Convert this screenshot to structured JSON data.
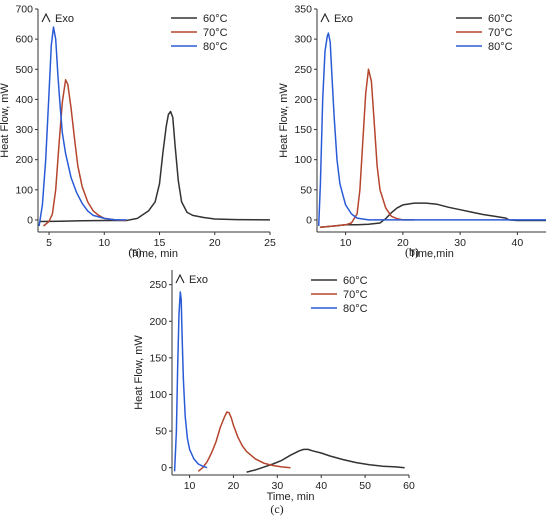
{
  "chart_data": [
    {
      "panel": "(a)",
      "type": "line",
      "exo_label": "Exo",
      "xlabel": "Time, min",
      "ylabel": "Heat Flow, mW",
      "xlim": [
        4,
        25
      ],
      "ylim": [
        -40,
        700
      ],
      "xticks": [
        5,
        10,
        15,
        20,
        25
      ],
      "yticks": [
        0,
        100,
        200,
        300,
        400,
        500,
        600,
        700
      ],
      "legend_position": "top-right",
      "series": [
        {
          "name": "60°C",
          "color": "#333333",
          "x": [
            4.2,
            6,
            8,
            10,
            12,
            13,
            14,
            14.6,
            15.0,
            15.3,
            15.6,
            15.8,
            16.0,
            16.2,
            16.4,
            16.7,
            17.0,
            17.5,
            18,
            19,
            20,
            22,
            25
          ],
          "y": [
            -5,
            -4,
            -3,
            -2,
            -2,
            5,
            30,
            60,
            120,
            220,
            310,
            350,
            360,
            340,
            250,
            130,
            60,
            25,
            15,
            8,
            3,
            1,
            0
          ]
        },
        {
          "name": "70°C",
          "color": "#b5452d",
          "x": [
            4.5,
            5.0,
            5.3,
            5.6,
            5.9,
            6.2,
            6.5,
            6.7,
            7.0,
            7.3,
            7.6,
            8.0,
            8.5,
            9.0,
            9.5,
            10,
            11,
            12
          ],
          "y": [
            -20,
            -5,
            20,
            100,
            250,
            390,
            465,
            450,
            370,
            270,
            180,
            110,
            60,
            30,
            15,
            5,
            0,
            -2
          ]
        },
        {
          "name": "80°C",
          "color": "#2a5bd7",
          "x": [
            4.1,
            4.4,
            4.7,
            5.0,
            5.2,
            5.4,
            5.6,
            5.8,
            6.0,
            6.2,
            6.5,
            7.0,
            7.5,
            8.0,
            8.5,
            9.0,
            10,
            11,
            12
          ],
          "y": [
            -20,
            50,
            200,
            420,
            580,
            640,
            600,
            480,
            380,
            290,
            220,
            140,
            90,
            55,
            30,
            15,
            5,
            0,
            0
          ]
        }
      ]
    },
    {
      "panel": "(b)",
      "type": "line",
      "exo_label": "Exo",
      "xlabel": "Time,min",
      "ylabel": "Heat Flow, mW",
      "xlim": [
        5,
        45
      ],
      "ylim": [
        -20,
        350
      ],
      "xticks": [
        10,
        20,
        30,
        40
      ],
      "yticks": [
        0,
        50,
        100,
        150,
        200,
        250,
        300,
        350
      ],
      "legend_position": "top-right",
      "series": [
        {
          "name": "60°C",
          "color": "#333333",
          "x": [
            5.5,
            8,
            10,
            12,
            14,
            16,
            17,
            18,
            19,
            20,
            22,
            24,
            26,
            28,
            30,
            32,
            34,
            36,
            38,
            38.5,
            40,
            45
          ],
          "y": [
            -12,
            -10,
            -8,
            -8,
            -7,
            -5,
            2,
            12,
            20,
            25,
            28,
            28,
            26,
            21,
            17,
            13,
            9,
            6,
            3,
            0,
            -1,
            -1
          ]
        },
        {
          "name": "70°C",
          "color": "#b5452d",
          "x": [
            5.5,
            8,
            10,
            11,
            12,
            12.5,
            13,
            13.5,
            14.0,
            14.5,
            15.0,
            15.5,
            16,
            17,
            18,
            19,
            20,
            22
          ],
          "y": [
            -12,
            -10,
            -8,
            -5,
            10,
            50,
            130,
            210,
            250,
            230,
            160,
            90,
            50,
            20,
            6,
            2,
            0,
            0
          ]
        },
        {
          "name": "80°C",
          "color": "#2a5bd7",
          "x": [
            5.3,
            5.6,
            6.0,
            6.4,
            6.8,
            7.0,
            7.3,
            7.6,
            8.0,
            8.5,
            9.0,
            10,
            11,
            12,
            14,
            16,
            20,
            30,
            45
          ],
          "y": [
            -10,
            60,
            200,
            280,
            305,
            310,
            295,
            240,
            170,
            100,
            60,
            25,
            10,
            3,
            0,
            0,
            0,
            0,
            0
          ]
        }
      ]
    },
    {
      "panel": "(c)",
      "type": "line",
      "exo_label": "Exo",
      "xlabel": "Time, min",
      "ylabel": "Heat Flow, mW",
      "xlim": [
        6,
        60
      ],
      "ylim": [
        -10,
        270
      ],
      "xticks": [
        10,
        20,
        30,
        40,
        50,
        60
      ],
      "yticks": [
        0,
        50,
        100,
        150,
        200,
        250
      ],
      "legend_position": "top-right",
      "series": [
        {
          "name": "60°C",
          "color": "#333333",
          "x": [
            23,
            25,
            27,
            29,
            31,
            33,
            35,
            36,
            37,
            38,
            40,
            42,
            45,
            48,
            51,
            54,
            57,
            59
          ],
          "y": [
            -6,
            -3,
            1,
            5,
            10,
            17,
            23,
            25,
            25,
            23,
            20,
            16,
            11,
            7,
            4,
            2,
            1,
            0
          ]
        },
        {
          "name": "70°C",
          "color": "#b5452d",
          "x": [
            12,
            13,
            14,
            15,
            16,
            17,
            18,
            18.5,
            19.0,
            19.5,
            20,
            21,
            22,
            23,
            25,
            27,
            29,
            31,
            33
          ],
          "y": [
            -5,
            0,
            8,
            20,
            35,
            55,
            70,
            76,
            75,
            68,
            58,
            42,
            30,
            22,
            12,
            6,
            3,
            1,
            0
          ]
        },
        {
          "name": "80°C",
          "color": "#2a5bd7",
          "x": [
            6.6,
            7.0,
            7.3,
            7.6,
            7.9,
            8.1,
            8.3,
            8.6,
            9.0,
            9.5,
            10,
            11,
            12,
            13,
            14
          ],
          "y": [
            -5,
            50,
            140,
            210,
            240,
            230,
            180,
            120,
            70,
            40,
            25,
            12,
            5,
            2,
            0
          ]
        }
      ]
    }
  ]
}
